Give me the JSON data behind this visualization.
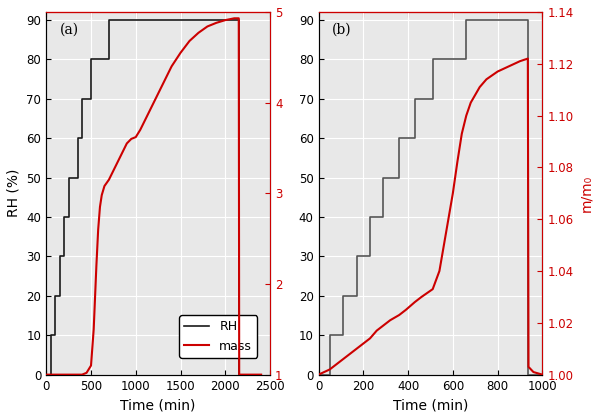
{
  "panel_a": {
    "label": "(a)",
    "rh_steps": [
      [
        0,
        0
      ],
      [
        50,
        0
      ],
      [
        50,
        10
      ],
      [
        100,
        10
      ],
      [
        100,
        20
      ],
      [
        150,
        20
      ],
      [
        150,
        30
      ],
      [
        200,
        30
      ],
      [
        200,
        40
      ],
      [
        250,
        40
      ],
      [
        250,
        50
      ],
      [
        350,
        50
      ],
      [
        350,
        60
      ],
      [
        400,
        60
      ],
      [
        400,
        70
      ],
      [
        500,
        70
      ],
      [
        500,
        80
      ],
      [
        700,
        80
      ],
      [
        700,
        90
      ],
      [
        2150,
        90
      ],
      [
        2150,
        0
      ],
      [
        2400,
        0
      ]
    ],
    "mass_x": [
      0,
      400,
      450,
      500,
      530,
      560,
      580,
      600,
      620,
      650,
      700,
      750,
      800,
      850,
      900,
      950,
      1000,
      1050,
      1100,
      1150,
      1200,
      1300,
      1400,
      1500,
      1600,
      1700,
      1800,
      1900,
      2000,
      2100,
      2150,
      2155,
      2200,
      2400
    ],
    "mass_y": [
      1.0,
      1.0,
      1.02,
      1.1,
      1.5,
      2.2,
      2.6,
      2.85,
      2.98,
      3.08,
      3.15,
      3.25,
      3.35,
      3.45,
      3.55,
      3.6,
      3.62,
      3.7,
      3.8,
      3.9,
      4.0,
      4.2,
      4.4,
      4.55,
      4.68,
      4.77,
      4.84,
      4.88,
      4.91,
      4.93,
      4.93,
      1.0,
      1.0,
      1.0
    ],
    "rh_color": "#1a1a1a",
    "mass_color": "#cc0000",
    "xlim": [
      0,
      2400
    ],
    "ylim_left": [
      0,
      92
    ],
    "ylim_right": [
      1.0,
      5.0
    ],
    "xticks": [
      0,
      500,
      1000,
      1500,
      2000,
      2500
    ],
    "yticks_left": [
      0,
      10,
      20,
      30,
      40,
      50,
      60,
      70,
      80,
      90
    ],
    "yticks_right": [
      1,
      2,
      3,
      4,
      5
    ],
    "ylabel_left": "RH (%)",
    "ylabel_right": "",
    "xlabel": "Time (min)",
    "legend": true
  },
  "panel_b": {
    "label": "(b)",
    "rh_steps": [
      [
        0,
        0
      ],
      [
        50,
        0
      ],
      [
        50,
        10
      ],
      [
        110,
        10
      ],
      [
        110,
        20
      ],
      [
        170,
        20
      ],
      [
        170,
        30
      ],
      [
        230,
        30
      ],
      [
        230,
        40
      ],
      [
        290,
        40
      ],
      [
        290,
        50
      ],
      [
        360,
        50
      ],
      [
        360,
        60
      ],
      [
        430,
        60
      ],
      [
        430,
        70
      ],
      [
        510,
        70
      ],
      [
        510,
        80
      ],
      [
        660,
        80
      ],
      [
        660,
        90
      ],
      [
        935,
        90
      ],
      [
        935,
        0
      ],
      [
        1000,
        0
      ]
    ],
    "mass_x": [
      0,
      50,
      80,
      110,
      140,
      170,
      200,
      230,
      260,
      290,
      320,
      360,
      390,
      430,
      460,
      510,
      540,
      560,
      580,
      600,
      620,
      640,
      660,
      680,
      700,
      720,
      750,
      800,
      850,
      900,
      935,
      938,
      960,
      1000
    ],
    "mass_y": [
      1.0,
      1.002,
      1.004,
      1.006,
      1.008,
      1.01,
      1.012,
      1.014,
      1.017,
      1.019,
      1.021,
      1.023,
      1.025,
      1.028,
      1.03,
      1.033,
      1.04,
      1.05,
      1.06,
      1.07,
      1.082,
      1.093,
      1.1,
      1.105,
      1.108,
      1.111,
      1.114,
      1.117,
      1.119,
      1.121,
      1.122,
      1.003,
      1.001,
      1.0
    ],
    "rh_color": "#555555",
    "mass_color": "#cc0000",
    "xlim": [
      0,
      1000
    ],
    "ylim_left": [
      0,
      92
    ],
    "ylim_right": [
      1.0,
      1.14
    ],
    "xticks": [
      0,
      200,
      400,
      600,
      800,
      1000
    ],
    "yticks_left": [
      0,
      10,
      20,
      30,
      40,
      50,
      60,
      70,
      80,
      90
    ],
    "yticks_right": [
      1.0,
      1.02,
      1.04,
      1.06,
      1.08,
      1.1,
      1.12,
      1.14
    ],
    "ylabel_left": "",
    "ylabel_right": "m/m₀",
    "xlabel": "Time (min)",
    "legend": false
  },
  "bg_color": "#e8e8e8",
  "grid_color": "#ffffff",
  "fig_bg": "#ffffff"
}
